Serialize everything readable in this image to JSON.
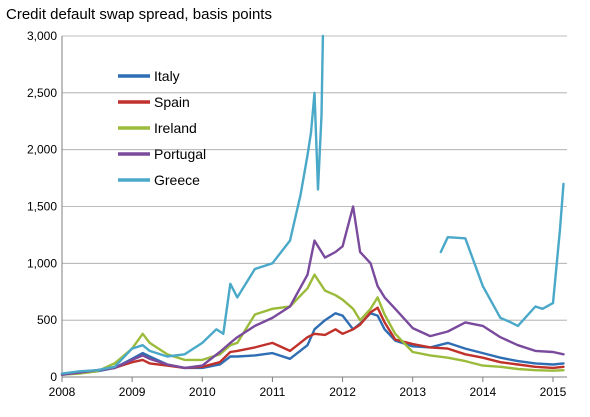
{
  "chart_data": {
    "type": "line",
    "title": "Credit default swap spread, basis points",
    "xlabel": "",
    "ylabel": "",
    "xlim": [
      2008.0,
      2015.2
    ],
    "ylim": [
      0,
      3000
    ],
    "x_ticks": [
      2008,
      2009,
      2010,
      2011,
      2012,
      2013,
      2014,
      2015
    ],
    "x_tick_labels": [
      "2008",
      "2009",
      "2010",
      "2011",
      "2012",
      "2013",
      "2014",
      "2015"
    ],
    "y_ticks": [
      0,
      500,
      1000,
      1500,
      2000,
      2500,
      3000
    ],
    "y_tick_labels": [
      "0",
      "500",
      "1,000",
      "1,500",
      "2,000",
      "2,500",
      "3,000"
    ],
    "grid": "horizontal",
    "legend_position": "top-left",
    "series": [
      {
        "name": "Italy",
        "color": "#2f6eb4",
        "x": [
          2008.0,
          2008.25,
          2008.5,
          2008.75,
          2009.0,
          2009.15,
          2009.25,
          2009.5,
          2009.75,
          2010.0,
          2010.25,
          2010.4,
          2010.5,
          2010.75,
          2011.0,
          2011.25,
          2011.5,
          2011.6,
          2011.75,
          2011.9,
          2012.0,
          2012.15,
          2012.25,
          2012.4,
          2012.5,
          2012.6,
          2012.75,
          2013.0,
          2013.25,
          2013.5,
          2013.75,
          2014.0,
          2014.25,
          2014.5,
          2014.75,
          2015.0,
          2015.15
        ],
        "y": [
          20,
          40,
          50,
          80,
          160,
          210,
          180,
          110,
          80,
          80,
          110,
          180,
          180,
          190,
          210,
          160,
          280,
          420,
          500,
          560,
          540,
          420,
          470,
          560,
          540,
          420,
          320,
          270,
          260,
          300,
          250,
          210,
          170,
          140,
          120,
          110,
          120
        ]
      },
      {
        "name": "Spain",
        "color": "#c0312b",
        "x": [
          2008.0,
          2008.25,
          2008.5,
          2008.75,
          2009.0,
          2009.15,
          2009.25,
          2009.5,
          2009.75,
          2010.0,
          2010.25,
          2010.4,
          2010.5,
          2010.75,
          2011.0,
          2011.25,
          2011.5,
          2011.6,
          2011.75,
          2011.9,
          2012.0,
          2012.15,
          2012.25,
          2012.4,
          2012.5,
          2012.6,
          2012.75,
          2013.0,
          2013.25,
          2013.5,
          2013.75,
          2014.0,
          2014.25,
          2014.5,
          2014.75,
          2015.0,
          2015.15
        ],
        "y": [
          20,
          40,
          60,
          80,
          130,
          150,
          120,
          100,
          80,
          90,
          130,
          220,
          230,
          260,
          300,
          230,
          350,
          380,
          370,
          420,
          380,
          420,
          460,
          570,
          610,
          480,
          330,
          290,
          260,
          250,
          200,
          170,
          130,
          110,
          90,
          80,
          90
        ]
      },
      {
        "name": "Ireland",
        "color": "#9bbb3b",
        "x": [
          2008.0,
          2008.25,
          2008.5,
          2008.75,
          2009.0,
          2009.15,
          2009.25,
          2009.5,
          2009.75,
          2010.0,
          2010.25,
          2010.4,
          2010.5,
          2010.75,
          2011.0,
          2011.25,
          2011.5,
          2011.6,
          2011.75,
          2011.9,
          2012.0,
          2012.15,
          2012.25,
          2012.4,
          2012.5,
          2012.6,
          2012.75,
          2013.0,
          2013.25,
          2013.5,
          2013.75,
          2014.0,
          2014.25,
          2014.5,
          2014.75,
          2015.0,
          2015.15
        ],
        "y": [
          20,
          30,
          50,
          120,
          250,
          380,
          300,
          200,
          150,
          150,
          200,
          280,
          300,
          550,
          600,
          620,
          780,
          900,
          760,
          720,
          680,
          600,
          500,
          600,
          700,
          550,
          380,
          220,
          190,
          170,
          140,
          100,
          90,
          70,
          60,
          55,
          60
        ]
      },
      {
        "name": "Portugal",
        "color": "#7a4a9c",
        "x": [
          2008.0,
          2008.25,
          2008.5,
          2008.75,
          2009.0,
          2009.15,
          2009.25,
          2009.5,
          2009.75,
          2010.0,
          2010.25,
          2010.4,
          2010.5,
          2010.75,
          2011.0,
          2011.25,
          2011.5,
          2011.6,
          2011.75,
          2011.9,
          2012.0,
          2012.15,
          2012.25,
          2012.4,
          2012.5,
          2012.6,
          2012.75,
          2013.0,
          2013.25,
          2013.5,
          2013.75,
          2014.0,
          2014.25,
          2014.5,
          2014.75,
          2015.0,
          2015.15
        ],
        "y": [
          20,
          40,
          60,
          80,
          150,
          190,
          160,
          110,
          80,
          100,
          220,
          300,
          350,
          450,
          520,
          620,
          900,
          1200,
          1050,
          1100,
          1150,
          1500,
          1100,
          1000,
          800,
          700,
          600,
          430,
          360,
          400,
          480,
          450,
          350,
          280,
          230,
          220,
          200
        ]
      },
      {
        "name": "Greece",
        "color": "#4aa8c8",
        "x": [
          2008.0,
          2008.25,
          2008.5,
          2008.75,
          2009.0,
          2009.15,
          2009.25,
          2009.5,
          2009.75,
          2010.0,
          2010.2,
          2010.3,
          2010.4,
          2010.5,
          2010.75,
          2011.0,
          2011.25,
          2011.4,
          2011.5,
          2011.55,
          2011.6,
          2011.65,
          2011.7,
          2011.72,
          null,
          2013.4,
          2013.5,
          2013.75,
          2014.0,
          2014.25,
          2014.4,
          2014.5,
          2014.75,
          2014.85,
          2015.0,
          2015.1,
          2015.15
        ],
        "y": [
          30,
          50,
          60,
          90,
          250,
          280,
          230,
          180,
          200,
          300,
          420,
          380,
          820,
          700,
          950,
          1000,
          1200,
          1600,
          1950,
          2150,
          2500,
          1650,
          2300,
          3000,
          null,
          1100,
          1230,
          1220,
          800,
          520,
          480,
          450,
          620,
          600,
          650,
          1300,
          1700
        ]
      }
    ]
  }
}
